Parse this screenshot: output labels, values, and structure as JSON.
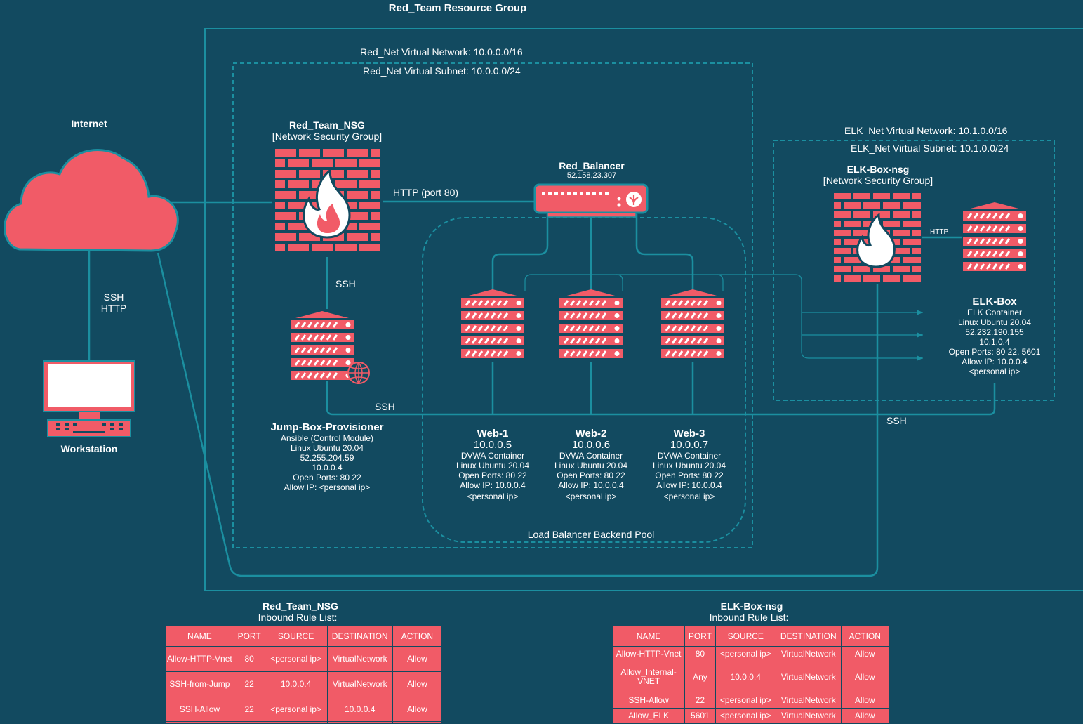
{
  "resource_group": {
    "title": "Red_Team Resource Group"
  },
  "red_net": {
    "vnet": "Red_Net Virtual Network: 10.0.0.0/16",
    "subnet": "Red_Net Virtual Subnet: 10.0.0.0/24"
  },
  "elk_net": {
    "vnet": "ELK_Net Virtual Network: 10.1.0.0/16",
    "subnet": "ELK_Net Virtual Subnet: 10.1.0.0/24"
  },
  "internet": {
    "label": "Internet"
  },
  "workstation": {
    "label": "Workstation",
    "link_label_1": "SSH",
    "link_label_2": "HTTP"
  },
  "red_nsg": {
    "name": "Red_Team_NSG",
    "type": "[Network Security Group]"
  },
  "elk_nsg": {
    "name": "ELK-Box-nsg",
    "type": "[Network Security Group]"
  },
  "balancer": {
    "name": "Red_Balancer",
    "ip": "52.158.23.307"
  },
  "links": {
    "http_port80": "HTTP (port 80)",
    "ssh_nsg_jump": "SSH",
    "ssh_jump_web": "SSH",
    "ssh_elk": "SSH",
    "http_elk": "HTTP"
  },
  "jumpbox": {
    "name": "Jump-Box-Provisioner",
    "lines": [
      "Ansible (Control Module)",
      "Linux Ubuntu 20.04",
      "52.255.204.59",
      "10.0.0.4",
      "Open Ports: 80 22",
      "Allow IP: <personal ip>"
    ]
  },
  "webs": [
    {
      "name": "Web-1",
      "ip": "10.0.0.5",
      "lines": [
        "DVWA Container",
        "Linux Ubuntu 20.04",
        "Open Ports: 80 22",
        "Allow IP: 10.0.0.4",
        "<personal ip>"
      ]
    },
    {
      "name": "Web-2",
      "ip": "10.0.0.6",
      "lines": [
        "DVWA Container",
        "Linux Ubuntu 20.04",
        "Open Ports: 80 22",
        "Allow IP: 10.0.0.4",
        "<personal ip>"
      ]
    },
    {
      "name": "Web-3",
      "ip": "10.0.0.7",
      "lines": [
        "DVWA Container",
        "Linux Ubuntu 20.04",
        "Open Ports: 80 22",
        "Allow IP: 10.0.0.4",
        "<personal ip>"
      ]
    }
  ],
  "backend_pool": {
    "label": "Load Balancer Backend Pool"
  },
  "elkbox": {
    "name": "ELK-Box",
    "lines": [
      "ELK Container",
      "Linux Ubuntu 20.04",
      "52.232.190.155",
      "10.1.0.4",
      "Open Ports: 80 22, 5601",
      "Allow IP: 10.0.0.4",
      "<personal ip>"
    ]
  },
  "red_rules": {
    "title": "Red_Team_NSG",
    "subtitle": "Inbound Rule List:",
    "headers": [
      "NAME",
      "PORT",
      "SOURCE",
      "DESTINATION",
      "ACTION"
    ],
    "rows": [
      [
        "Allow-HTTP-Vnet",
        "80",
        "<personal ip>",
        "VirtualNetwork",
        "Allow"
      ],
      [
        "SSH-from-Jump",
        "22",
        "10.0.0.4",
        "VirtualNetwork",
        "Allow"
      ],
      [
        "SSH-Allow",
        "22",
        "<personal ip>",
        "10.0.0.4",
        "Allow"
      ],
      [
        "",
        "",
        "",
        "",
        ""
      ]
    ]
  },
  "elk_rules": {
    "title": "ELK-Box-nsg",
    "subtitle": "Inbound Rule List:",
    "headers": [
      "NAME",
      "PORT",
      "SOURCE",
      "DESTINATION",
      "ACTION"
    ],
    "rows": [
      [
        "Allow-HTTP-Vnet",
        "80",
        "<personal ip>",
        "VirtualNetwork",
        "Allow"
      ],
      [
        "Allow_Internal-VNET",
        "Any",
        "10.0.0.4",
        "VirtualNetwork",
        "Allow"
      ],
      [
        "SSH-Allow",
        "22",
        "<personal ip>",
        "VirtualNetwork",
        "Allow"
      ],
      [
        "Allow_ELK",
        "5601",
        "<personal ip>",
        "VirtualNetwork",
        "Allow"
      ]
    ]
  },
  "colors": {
    "background": "#124a60",
    "accent": "#f15b67",
    "line": "#1b8fa0",
    "text": "#ffffff"
  }
}
